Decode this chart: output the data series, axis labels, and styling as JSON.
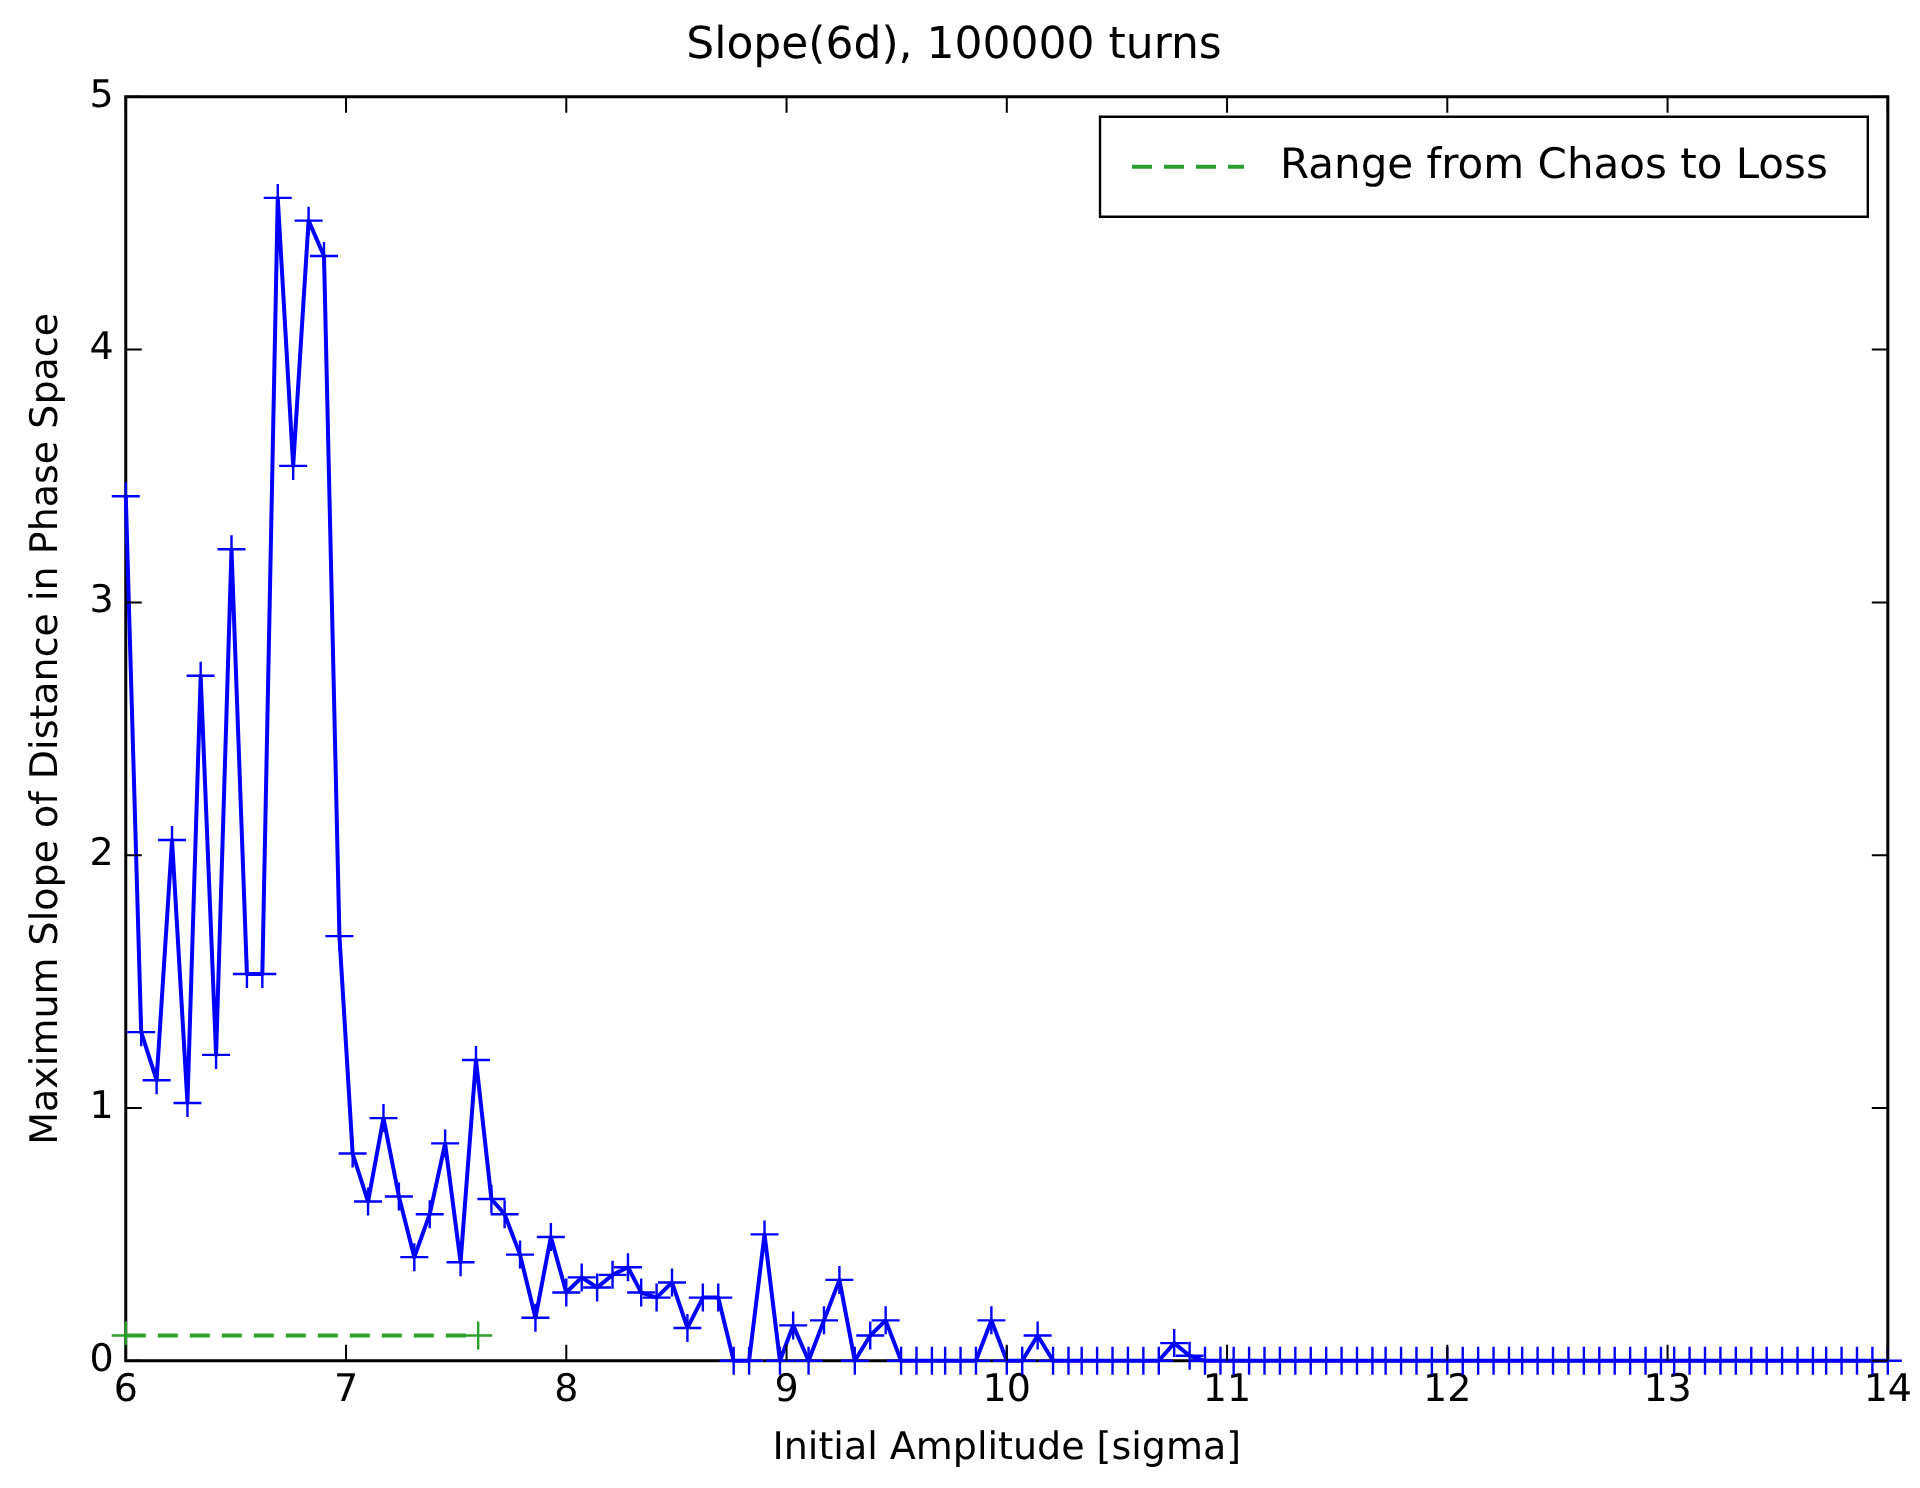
{
  "chart_data": {
    "type": "line",
    "title": "Slope(6d), 100000 turns",
    "xlabel": "Initial Amplitude [sigma]",
    "ylabel": "Maximum Slope of Distance in Phase Space",
    "xlim": [
      6,
      14
    ],
    "xticks": [
      6,
      7,
      8,
      9,
      10,
      11,
      12,
      13,
      14
    ],
    "ylim": [
      0,
      5
    ],
    "yticks": [
      0,
      1,
      2,
      3,
      4,
      5
    ],
    "grid": false,
    "legend": "top right",
    "marker": "cross",
    "series": [
      {
        "color": "#0000ff",
        "line_style": "solid",
        "x": [
          6.0,
          6.07,
          6.14,
          6.21,
          6.28,
          6.34,
          6.41,
          6.48,
          6.55,
          6.62,
          6.69,
          6.76,
          6.83,
          6.9,
          6.97,
          7.03,
          7.1,
          7.17,
          7.24,
          7.31,
          7.38,
          7.45,
          7.52,
          7.59,
          7.66,
          7.72,
          7.79,
          7.86,
          7.93,
          8.0,
          8.07,
          8.14,
          8.21,
          8.28,
          8.34,
          8.41,
          8.48,
          8.55,
          8.62,
          8.69,
          8.76,
          8.83,
          8.9,
          8.97,
          9.03,
          9.1,
          9.17,
          9.24,
          9.31,
          9.38,
          9.45,
          9.52,
          9.59,
          9.66,
          9.72,
          9.79,
          9.86,
          9.93,
          10.0,
          10.07,
          10.14,
          10.21,
          10.28,
          10.34,
          10.41,
          10.48,
          10.55,
          10.62,
          10.69,
          10.76,
          10.83,
          10.9,
          10.97,
          11.03,
          11.1,
          11.17,
          11.24,
          11.31,
          11.38,
          11.45,
          11.52,
          11.59,
          11.66,
          11.72,
          11.79,
          11.86,
          11.93,
          12.0,
          12.07,
          12.14,
          12.21,
          12.28,
          12.34,
          12.41,
          12.48,
          12.55,
          12.62,
          12.69,
          12.76,
          12.83,
          12.9,
          12.97,
          13.03,
          13.1,
          13.17,
          13.24,
          13.31,
          13.38,
          13.45,
          13.52,
          13.59,
          13.66,
          13.72,
          13.79,
          13.86,
          13.93,
          14.0
        ],
        "values": [
          3.42,
          1.3,
          1.11,
          2.06,
          1.02,
          2.71,
          1.21,
          3.21,
          1.53,
          1.53,
          4.6,
          3.54,
          4.51,
          4.37,
          1.68,
          0.82,
          0.63,
          0.96,
          0.65,
          0.41,
          0.58,
          0.86,
          0.39,
          1.19,
          0.64,
          0.58,
          0.42,
          0.17,
          0.49,
          0.27,
          0.33,
          0.29,
          0.34,
          0.37,
          0.27,
          0.25,
          0.31,
          0.13,
          0.25,
          0.25,
          0,
          0,
          0.5,
          0,
          0.14,
          0,
          0.16,
          0.32,
          0,
          0.1,
          0.16,
          0,
          0,
          0,
          0,
          0,
          0,
          0.16,
          0,
          0,
          0.1,
          0,
          0,
          0,
          0,
          0,
          0,
          0,
          0,
          0.07,
          0.02,
          0,
          0,
          0,
          0,
          0,
          0,
          0,
          0,
          0,
          0,
          0,
          0,
          0,
          0,
          0,
          0,
          0,
          0,
          0,
          0,
          0,
          0,
          0,
          0,
          0,
          0,
          0,
          0,
          0,
          0,
          0,
          0,
          0,
          0,
          0,
          0,
          0,
          0,
          0,
          0,
          0,
          0,
          0,
          0,
          0,
          0
        ]
      },
      {
        "name": "Range from Chaos to Loss",
        "color": "#2ca02c",
        "line_style": "dashed",
        "x": [
          6.0,
          7.6
        ],
        "values": [
          0.1,
          0.1
        ]
      }
    ]
  }
}
